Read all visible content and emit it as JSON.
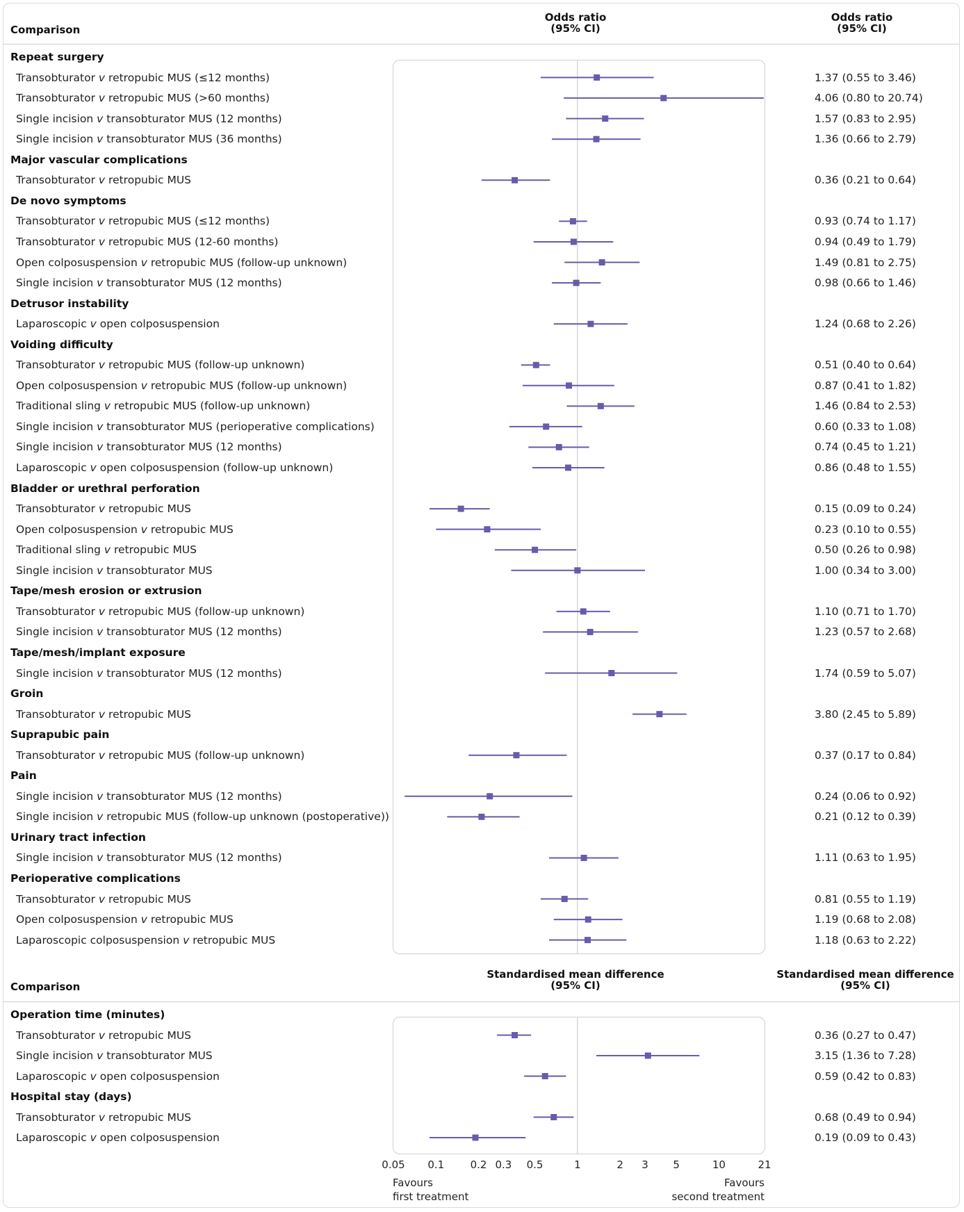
{
  "colors": {
    "marker": "#6a5aaa",
    "reference": "#cfcfcf",
    "panel_border": "#cfcfcf"
  },
  "header_top": {
    "comparison": "Comparison",
    "middle_line1": "Odds ratio",
    "middle_line2": "(95% CI)",
    "right_line1": "Odds ratio",
    "right_line2": "(95% CI)"
  },
  "header_bottom": {
    "comparison": "Comparison",
    "middle_line1": "Standardised mean difference",
    "middle_line2": "(95% CI)",
    "right_line1": "Standardised mean difference",
    "right_line2": "(95% CI)"
  },
  "x_axis": {
    "scale": "log",
    "range": [
      0.05,
      21
    ],
    "ticks": [
      "0.05",
      "0.1",
      "0.2",
      "0.3",
      "0.5",
      "1",
      "2",
      "3",
      "5",
      "10",
      "21"
    ],
    "reference_line": 1
  },
  "favours": {
    "left_line1": "Favours",
    "left_line2": "first treatment",
    "right_line1": "Favours",
    "right_line2": "second treatment"
  },
  "chart_data": [
    {
      "type": "forest",
      "measure": "Odds ratio (95% CI)",
      "scale": "log",
      "xlim": [
        0.05,
        21
      ],
      "reference": 1,
      "groups": [
        {
          "title": "Repeat surgery",
          "rows": [
            {
              "first": "Transobturator",
              "second": "retropubic MUS (≤12 months)",
              "est": 1.37,
              "lo": 0.55,
              "hi": 3.46,
              "text": "1.37 (0.55 to 3.46)"
            },
            {
              "first": "Transobturator",
              "second": "retropubic MUS (>60 months)",
              "est": 4.06,
              "lo": 0.8,
              "hi": 20.74,
              "text": "4.06 (0.80 to 20.74)"
            },
            {
              "first": "Single incision",
              "second": "transobturator MUS (12 months)",
              "est": 1.57,
              "lo": 0.83,
              "hi": 2.95,
              "text": "1.57 (0.83 to 2.95)"
            },
            {
              "first": "Single incision",
              "second": "transobturator MUS (36 months)",
              "est": 1.36,
              "lo": 0.66,
              "hi": 2.79,
              "text": "1.36 (0.66 to 2.79)"
            }
          ]
        },
        {
          "title": "Major vascular complications",
          "rows": [
            {
              "first": "Transobturator",
              "second": "retropubic MUS",
              "est": 0.36,
              "lo": 0.21,
              "hi": 0.64,
              "text": "0.36 (0.21 to 0.64)"
            }
          ]
        },
        {
          "title": "De novo symptoms",
          "rows": [
            {
              "first": "Transobturator",
              "second": "retropubic MUS (≤12 months)",
              "est": 0.93,
              "lo": 0.74,
              "hi": 1.17,
              "text": "0.93 (0.74 to 1.17)"
            },
            {
              "first": "Transobturator",
              "second": "retropubic MUS (12-60 months)",
              "est": 0.94,
              "lo": 0.49,
              "hi": 1.79,
              "text": "0.94 (0.49 to 1.79)"
            },
            {
              "first": "Open colposuspension",
              "second": "retropubic MUS (follow-up unknown)",
              "est": 1.49,
              "lo": 0.81,
              "hi": 2.75,
              "text": "1.49 (0.81 to 2.75)"
            },
            {
              "first": "Single incision",
              "second": "transobturator MUS (12 months)",
              "est": 0.98,
              "lo": 0.66,
              "hi": 1.46,
              "text": "0.98 (0.66 to 1.46)"
            }
          ]
        },
        {
          "title": "Detrusor instability",
          "rows": [
            {
              "first": "Laparoscopic",
              "second": "open colposuspension",
              "est": 1.24,
              "lo": 0.68,
              "hi": 2.26,
              "text": "1.24 (0.68 to 2.26)"
            }
          ]
        },
        {
          "title": "Voiding difficulty",
          "rows": [
            {
              "first": "Transobturator",
              "second": "retropubic MUS (follow-up unknown)",
              "est": 0.51,
              "lo": 0.4,
              "hi": 0.64,
              "text": "0.51 (0.40 to 0.64)"
            },
            {
              "first": "Open colposuspension",
              "second": "retropubic MUS (follow-up unknown)",
              "est": 0.87,
              "lo": 0.41,
              "hi": 1.82,
              "text": "0.87 (0.41 to 1.82)"
            },
            {
              "first": "Traditional sling",
              "second": "retropubic MUS (follow-up unknown)",
              "est": 1.46,
              "lo": 0.84,
              "hi": 2.53,
              "text": "1.46 (0.84 to 2.53)"
            },
            {
              "first": "Single incision",
              "second": "transobturator MUS (perioperative complications)",
              "est": 0.6,
              "lo": 0.33,
              "hi": 1.08,
              "text": "0.60 (0.33 to 1.08)"
            },
            {
              "first": "Single incision",
              "second": "transobturator MUS (12 months)",
              "est": 0.74,
              "lo": 0.45,
              "hi": 1.21,
              "text": "0.74 (0.45 to 1.21)"
            },
            {
              "first": "Laparoscopic",
              "second": "open colposuspension (follow-up unknown)",
              "est": 0.86,
              "lo": 0.48,
              "hi": 1.55,
              "text": "0.86 (0.48 to 1.55)"
            }
          ]
        },
        {
          "title": "Bladder or urethral perforation",
          "rows": [
            {
              "first": "Transobturator",
              "second": "retropubic MUS",
              "est": 0.15,
              "lo": 0.09,
              "hi": 0.24,
              "text": "0.15 (0.09 to 0.24)"
            },
            {
              "first": "Open colposuspension",
              "second": "retropubic MUS",
              "est": 0.23,
              "lo": 0.1,
              "hi": 0.55,
              "text": "0.23 (0.10 to 0.55)"
            },
            {
              "first": "Traditional sling",
              "second": "retropubic MUS",
              "est": 0.5,
              "lo": 0.26,
              "hi": 0.98,
              "text": "0.50 (0.26 to 0.98)"
            },
            {
              "first": "Single incision",
              "second": "transobturator MUS",
              "est": 1.0,
              "lo": 0.34,
              "hi": 3.0,
              "text": "1.00 (0.34 to 3.00)"
            }
          ]
        },
        {
          "title": "Tape/mesh erosion or extrusion",
          "rows": [
            {
              "first": "Transobturator",
              "second": "retropubic MUS (follow-up unknown)",
              "est": 1.1,
              "lo": 0.71,
              "hi": 1.7,
              "text": "1.10 (0.71 to 1.70)"
            },
            {
              "first": "Single incision",
              "second": "transobturator MUS (12 months)",
              "est": 1.23,
              "lo": 0.57,
              "hi": 2.68,
              "text": "1.23 (0.57 to 2.68)"
            }
          ]
        },
        {
          "title": "Tape/mesh/implant exposure",
          "rows": [
            {
              "first": "Single incision",
              "second": "transobturator MUS (12 months)",
              "est": 1.74,
              "lo": 0.59,
              "hi": 5.07,
              "text": "1.74 (0.59 to 5.07)"
            }
          ]
        },
        {
          "title": "Groin",
          "rows": [
            {
              "first": "Transobturator",
              "second": "retropubic MUS",
              "est": 3.8,
              "lo": 2.45,
              "hi": 5.89,
              "text": "3.80 (2.45 to 5.89)"
            }
          ]
        },
        {
          "title": "Suprapubic pain",
          "rows": [
            {
              "first": "Transobturator",
              "second": "retropubic MUS (follow-up unknown)",
              "est": 0.37,
              "lo": 0.17,
              "hi": 0.84,
              "text": "0.37 (0.17 to 0.84)"
            }
          ]
        },
        {
          "title": "Pain",
          "rows": [
            {
              "first": "Single incision",
              "second": "transobturator MUS (12 months)",
              "est": 0.24,
              "lo": 0.06,
              "hi": 0.92,
              "text": "0.24 (0.06 to 0.92)"
            },
            {
              "first": "Single incision",
              "second": "retropubic MUS (follow-up unknown (postoperative))",
              "est": 0.21,
              "lo": 0.12,
              "hi": 0.39,
              "text": "0.21 (0.12 to 0.39)"
            }
          ]
        },
        {
          "title": "Urinary tract infection",
          "rows": [
            {
              "first": "Single incision",
              "second": "transobturator MUS (12 months)",
              "est": 1.11,
              "lo": 0.63,
              "hi": 1.95,
              "text": "1.11 (0.63 to 1.95)"
            }
          ]
        },
        {
          "title": "Perioperative complications",
          "rows": [
            {
              "first": "Transobturator",
              "second": "retropubic MUS",
              "est": 0.81,
              "lo": 0.55,
              "hi": 1.19,
              "text": "0.81 (0.55 to 1.19)"
            },
            {
              "first": "Open colposuspension",
              "second": "retropubic MUS",
              "est": 1.19,
              "lo": 0.68,
              "hi": 2.08,
              "text": "1.19 (0.68 to 2.08)"
            },
            {
              "first": "Laparoscopic colposuspension",
              "second": "retropubic MUS",
              "est": 1.18,
              "lo": 0.63,
              "hi": 2.22,
              "text": "1.18 (0.63 to 2.22)"
            }
          ]
        }
      ]
    },
    {
      "type": "forest",
      "measure": "Standardised mean difference (95% CI)",
      "scale": "log",
      "xlim": [
        0.05,
        21
      ],
      "reference": 1,
      "groups": [
        {
          "title": "Operation time (minutes)",
          "rows": [
            {
              "first": "Transobturator",
              "second": "retropubic MUS",
              "est": 0.36,
              "lo": 0.27,
              "hi": 0.47,
              "text": "0.36 (0.27 to 0.47)"
            },
            {
              "first": "Single incision",
              "second": "transobturator MUS",
              "est": 3.15,
              "lo": 1.36,
              "hi": 7.28,
              "text": "3.15 (1.36 to 7.28)"
            },
            {
              "first": "Laparoscopic",
              "second": "open colposuspension",
              "est": 0.59,
              "lo": 0.42,
              "hi": 0.83,
              "text": "0.59 (0.42 to 0.83)"
            }
          ]
        },
        {
          "title": "Hospital stay (days)",
          "rows": [
            {
              "first": "Transobturator",
              "second": "retropubic MUS",
              "est": 0.68,
              "lo": 0.49,
              "hi": 0.94,
              "text": "0.68 (0.49 to 0.94)"
            },
            {
              "first": "Laparoscopic",
              "second": "open colposuspension",
              "est": 0.19,
              "lo": 0.09,
              "hi": 0.43,
              "text": "0.19 (0.09 to 0.43)"
            }
          ]
        }
      ]
    }
  ]
}
